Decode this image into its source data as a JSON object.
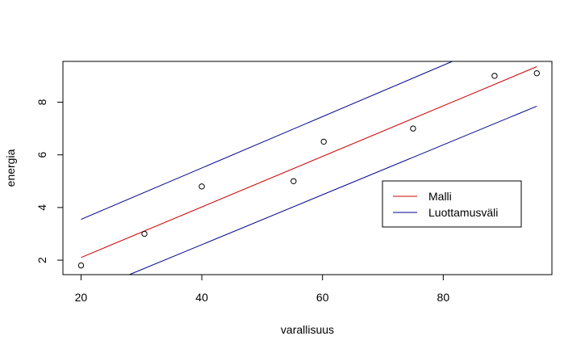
{
  "chart_data": {
    "type": "scatter",
    "title": "",
    "xlabel": "varallisuus",
    "ylabel": "energia",
    "xlim": [
      17,
      98
    ],
    "ylim": [
      1.45,
      9.55
    ],
    "xticks": [
      20,
      40,
      60,
      80
    ],
    "yticks": [
      2,
      4,
      6,
      8
    ],
    "grid": false,
    "legend_position": "bottom-right",
    "points": {
      "x": [
        20,
        30.5,
        40,
        55.2,
        60.2,
        75,
        88.5,
        95.5
      ],
      "y": [
        1.8,
        3.0,
        4.8,
        5.0,
        6.5,
        7.0,
        9.0,
        9.1
      ]
    },
    "series": [
      {
        "name": "Malli",
        "color": "#cc0000",
        "x": [
          20,
          95.5
        ],
        "y": [
          2.1,
          9.35
        ]
      },
      {
        "name": "Luottamusväli",
        "color": "#00008b",
        "x": [
          20,
          81.5
        ],
        "y": [
          3.55,
          9.55
        ]
      },
      {
        "name": "Luottamusväli",
        "color": "#00008b",
        "x": [
          28,
          95.5
        ],
        "y": [
          1.45,
          7.85
        ]
      }
    ],
    "legend": [
      {
        "label": "Malli",
        "color": "#cc0000"
      },
      {
        "label": "Luottamusväli",
        "color": "#00008b"
      }
    ]
  }
}
